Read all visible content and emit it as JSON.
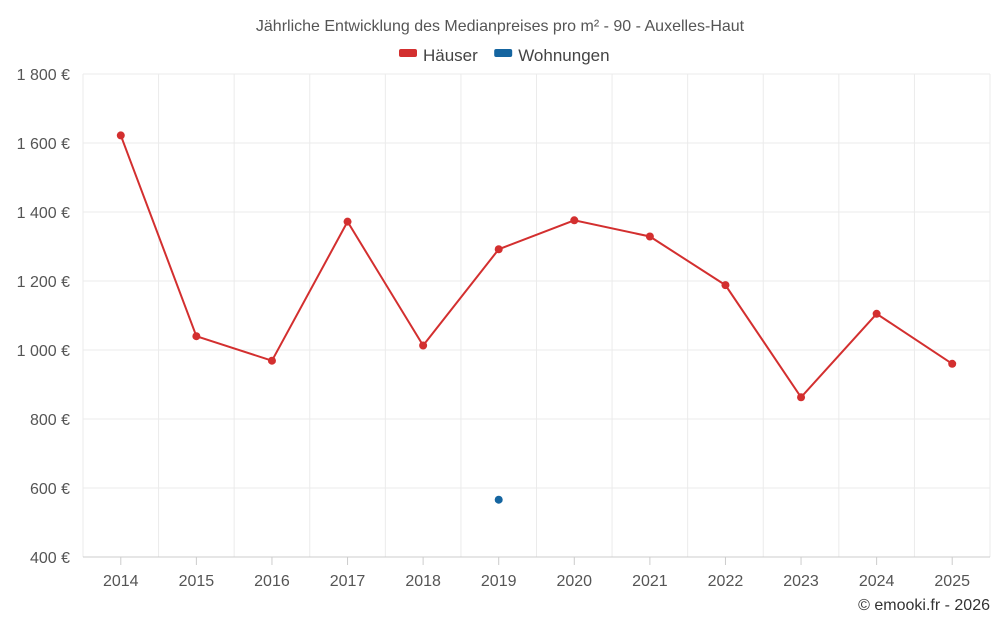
{
  "chart_data": {
    "type": "line",
    "title": "Jährliche Entwicklung des Medianpreises pro m² - 90 - Auxelles-Haut",
    "categories": [
      "2014",
      "2015",
      "2016",
      "2017",
      "2018",
      "2019",
      "2020",
      "2021",
      "2022",
      "2023",
      "2024",
      "2025"
    ],
    "series": [
      {
        "name": "Häuser",
        "color": "#d32f2f",
        "values": [
          1622,
          1040,
          969,
          1372,
          1013,
          1292,
          1376,
          1329,
          1188,
          863,
          1105,
          960
        ]
      },
      {
        "name": "Wohnungen",
        "color": "#1565a0",
        "values": [
          null,
          null,
          null,
          null,
          null,
          566,
          null,
          null,
          null,
          null,
          null,
          null
        ]
      }
    ],
    "ylim": [
      400,
      1800
    ],
    "yticks": [
      400,
      600,
      800,
      1000,
      1200,
      1400,
      1600,
      1800
    ],
    "ytick_labels": [
      "400 €",
      "600 €",
      "800 €",
      "1 000 €",
      "1 200 €",
      "1 400 €",
      "1 600 €",
      "1 800 €"
    ],
    "grid": true,
    "legend_position": "top-center",
    "credit": "© emooki.fr - 2026"
  }
}
